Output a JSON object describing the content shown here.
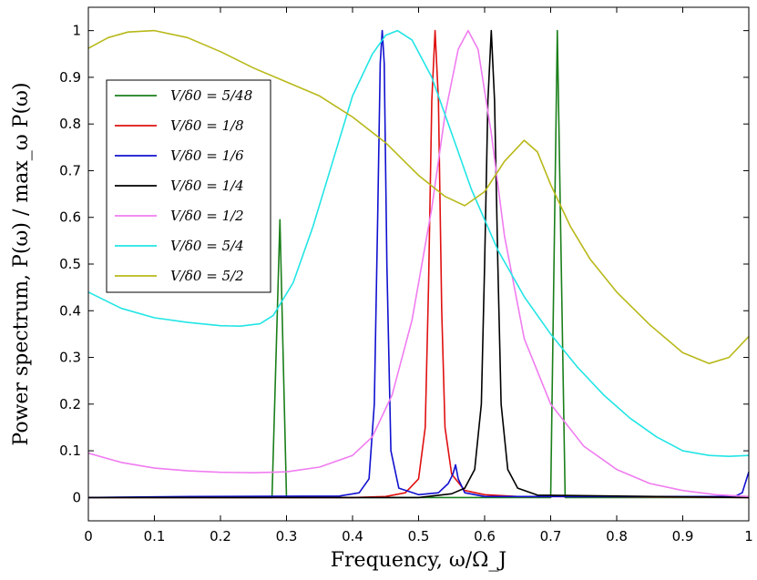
{
  "chart_data": {
    "type": "line",
    "xlabel": "Frequency, ω/Ω_J",
    "ylabel": "Power spectrum, P(ω) / max_ω P(ω)",
    "xlim": [
      0,
      1
    ],
    "ylim": [
      -0.05,
      1.05
    ],
    "xticks": [
      "0",
      "0.1",
      "0.2",
      "0.3",
      "0.4",
      "0.5",
      "0.6",
      "0.7",
      "0.8",
      "0.9",
      "1"
    ],
    "yticks": [
      "0",
      "0.1",
      "0.2",
      "0.3",
      "0.4",
      "0.5",
      "0.6",
      "0.7",
      "0.8",
      "0.9",
      "1"
    ],
    "xtick_values": [
      0,
      0.1,
      0.2,
      0.3,
      0.4,
      0.5,
      0.6,
      0.7,
      0.8,
      0.9,
      1
    ],
    "ytick_values": [
      0,
      0.1,
      0.2,
      0.3,
      0.4,
      0.5,
      0.6,
      0.7,
      0.8,
      0.9,
      1
    ],
    "grid": false,
    "legend_position": "left",
    "series": [
      {
        "name": "V/δ0 = 5/48",
        "color": "#1a7f1a",
        "x": [
          0,
          0.278,
          0.29,
          0.3,
          0.7,
          0.71,
          0.722,
          1
        ],
        "y": [
          0,
          0,
          0.595,
          0,
          0,
          1.0,
          0,
          0
        ]
      },
      {
        "name": "V/δ0 = 1/8",
        "color": "#e01010",
        "x": [
          0,
          0.4,
          0.45,
          0.48,
          0.5,
          0.51,
          0.515,
          0.52,
          0.525,
          0.53,
          0.535,
          0.54,
          0.55,
          0.57,
          0.6,
          0.65,
          0.78,
          1
        ],
        "y": [
          0,
          0,
          0.002,
          0.01,
          0.04,
          0.15,
          0.45,
          0.85,
          1.0,
          0.85,
          0.4,
          0.15,
          0.05,
          0.015,
          0.006,
          0.002,
          0.002,
          0
        ]
      },
      {
        "name": "V/δ0 = 1/6",
        "color": "#1010d0",
        "x": [
          0,
          0.155,
          0.38,
          0.41,
          0.425,
          0.433,
          0.438,
          0.442,
          0.445,
          0.448,
          0.452,
          0.458,
          0.47,
          0.5,
          0.53,
          0.545,
          0.552,
          0.556,
          0.56,
          0.57,
          0.6,
          0.95,
          0.98,
          0.99,
          1
        ],
        "y": [
          0,
          0.002,
          0.003,
          0.01,
          0.04,
          0.2,
          0.6,
          0.93,
          1.0,
          0.93,
          0.5,
          0.1,
          0.02,
          0.006,
          0.01,
          0.03,
          0.05,
          0.07,
          0.04,
          0.01,
          0.002,
          0.002,
          0.003,
          0.01,
          0.055
        ]
      },
      {
        "name": "V/δ0 = 1/4",
        "color": "#000000",
        "x": [
          0,
          0.5,
          0.55,
          0.57,
          0.585,
          0.595,
          0.6,
          0.605,
          0.61,
          0.615,
          0.62,
          0.625,
          0.635,
          0.65,
          0.68,
          1
        ],
        "y": [
          0,
          0,
          0.008,
          0.02,
          0.06,
          0.2,
          0.5,
          0.85,
          1.0,
          0.85,
          0.5,
          0.2,
          0.06,
          0.02,
          0.005,
          0
        ]
      },
      {
        "name": "V/δ0 = 1/2",
        "color": "#f07cf0",
        "x": [
          0,
          0.05,
          0.1,
          0.15,
          0.2,
          0.25,
          0.3,
          0.35,
          0.4,
          0.43,
          0.46,
          0.49,
          0.52,
          0.54,
          0.56,
          0.575,
          0.59,
          0.61,
          0.63,
          0.66,
          0.7,
          0.75,
          0.8,
          0.85,
          0.9,
          0.95,
          1
        ],
        "y": [
          0.095,
          0.075,
          0.063,
          0.057,
          0.054,
          0.053,
          0.055,
          0.065,
          0.09,
          0.13,
          0.22,
          0.38,
          0.62,
          0.82,
          0.96,
          1.0,
          0.96,
          0.78,
          0.56,
          0.34,
          0.2,
          0.11,
          0.06,
          0.03,
          0.015,
          0.006,
          0.002
        ]
      },
      {
        "name": "V/δ0 = 5/4",
        "color": "#22e5e5",
        "x": [
          0,
          0.05,
          0.1,
          0.15,
          0.2,
          0.23,
          0.26,
          0.28,
          0.31,
          0.34,
          0.37,
          0.4,
          0.43,
          0.45,
          0.468,
          0.49,
          0.52,
          0.55,
          0.58,
          0.62,
          0.66,
          0.7,
          0.74,
          0.78,
          0.82,
          0.86,
          0.9,
          0.94,
          0.97,
          1
        ],
        "y": [
          0.44,
          0.405,
          0.385,
          0.375,
          0.368,
          0.367,
          0.372,
          0.39,
          0.46,
          0.58,
          0.72,
          0.86,
          0.95,
          0.99,
          1.0,
          0.98,
          0.9,
          0.78,
          0.66,
          0.53,
          0.43,
          0.35,
          0.28,
          0.22,
          0.17,
          0.13,
          0.1,
          0.09,
          0.088,
          0.09
        ]
      },
      {
        "name": "V/δ0 = 5/2",
        "color": "#b8b81a",
        "x": [
          0,
          0.03,
          0.06,
          0.1,
          0.15,
          0.2,
          0.25,
          0.3,
          0.35,
          0.4,
          0.45,
          0.5,
          0.54,
          0.57,
          0.6,
          0.63,
          0.66,
          0.68,
          0.7,
          0.73,
          0.76,
          0.8,
          0.85,
          0.9,
          0.94,
          0.97,
          1
        ],
        "y": [
          0.962,
          0.985,
          0.997,
          1.0,
          0.985,
          0.955,
          0.92,
          0.89,
          0.86,
          0.815,
          0.76,
          0.69,
          0.645,
          0.625,
          0.655,
          0.72,
          0.765,
          0.74,
          0.67,
          0.58,
          0.51,
          0.44,
          0.37,
          0.31,
          0.287,
          0.3,
          0.345
        ]
      }
    ]
  }
}
